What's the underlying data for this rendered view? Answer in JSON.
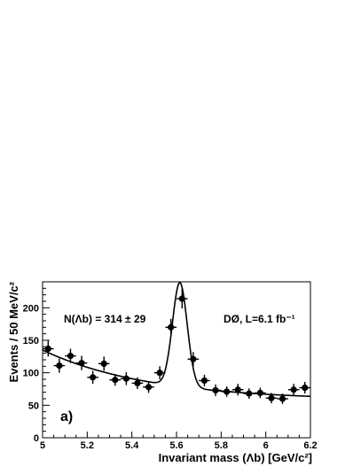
{
  "chart_data": {
    "type": "scatter",
    "title": "",
    "xlabel": "Invariant mass (Λb) [GeV/c²]",
    "ylabel": "Events / 50 MeV/c²",
    "xlim": [
      5.0,
      6.2
    ],
    "ylim": [
      0,
      240
    ],
    "x_ticks": [
      "5",
      "5.2",
      "5.4",
      "5.6",
      "5.8",
      "6",
      "6.2"
    ],
    "y_ticks": [
      "0",
      "50",
      "100",
      "150",
      "200"
    ],
    "grid": false,
    "annotations": {
      "yield": "N(Λb) = 314 ± 29",
      "experiment": "DØ, L=6.1 fb⁻¹",
      "panel": "a)"
    },
    "series": [
      {
        "type": "scatter_errorbars",
        "x": [
          5.025,
          5.075,
          5.125,
          5.175,
          5.225,
          5.275,
          5.325,
          5.375,
          5.425,
          5.475,
          5.525,
          5.575,
          5.625,
          5.675,
          5.725,
          5.775,
          5.825,
          5.875,
          5.925,
          5.975,
          6.025,
          6.075,
          6.125,
          6.175
        ],
        "y": [
          137,
          111,
          126,
          115,
          93,
          114,
          89,
          91,
          84,
          78,
          100,
          170,
          214,
          121,
          88,
          73,
          71,
          74,
          68,
          69,
          61,
          60,
          74,
          77
        ],
        "yerr": [
          12,
          11,
          11,
          11,
          10,
          11,
          9,
          10,
          9,
          9,
          10,
          13,
          15,
          11,
          9,
          9,
          8,
          9,
          8,
          8,
          8,
          8,
          9,
          9
        ],
        "xerr": 0.025
      },
      {
        "type": "fit_curve",
        "model": "exponential background + gaussian peak",
        "background": {
          "a": 135,
          "b": 57.5,
          "k": 2.1
        },
        "peak": {
          "amplitude": 160,
          "mean": 5.615,
          "sigma": 0.033
        }
      }
    ]
  }
}
